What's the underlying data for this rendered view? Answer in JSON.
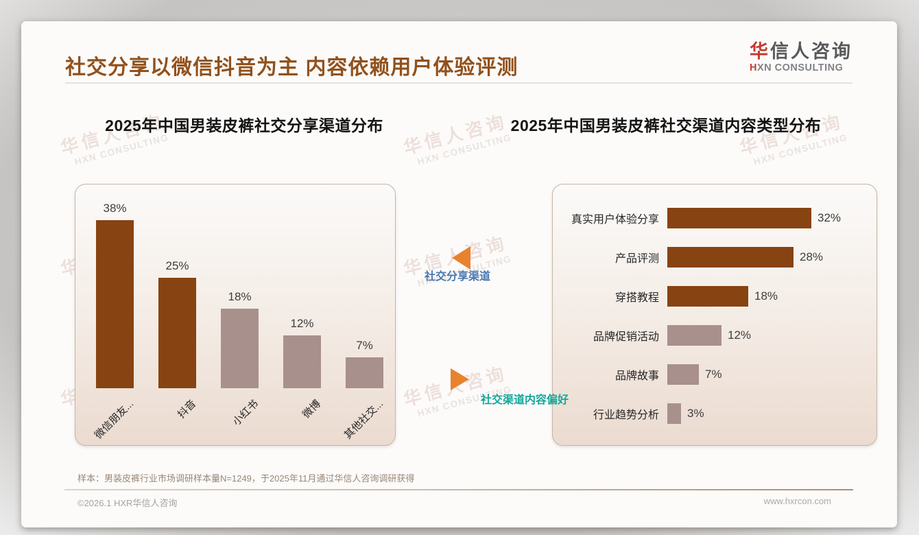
{
  "header": {
    "title": "社交分享以微信抖音为主 内容依赖用户体验评测",
    "logo_cn_accent": "华",
    "logo_cn_rest": "信人咨询",
    "logo_en_accent": "H",
    "logo_en_rest": "XN CONSULTING"
  },
  "connector": {
    "top_label": "社交分享渠道",
    "bottom_label": "社交渠道内容偏好"
  },
  "footnote": {
    "sample_note": "样本：男装皮裤行业市场调研样本量N=1249，于2025年11月通过华信人咨询调研获得"
  },
  "footer": {
    "copyright": "©2026.1 HXR华信人咨询",
    "website": "www.hxrcon.com"
  },
  "watermark": {
    "line1": "华信人咨询",
    "line2": "HXN CONSULTING"
  },
  "colors": {
    "title_brown": "#91511C",
    "primary_brown": "#874312",
    "secondary_mauve": "#A8908C",
    "accent_orange": "#E8822D",
    "label_blue": "#4A78B0",
    "label_teal": "#17A79A",
    "panel_border": "#C8B5A5"
  },
  "chart_data": [
    {
      "type": "bar",
      "orientation": "vertical",
      "title": "2025年中国男装皮裤社交分享渠道分布",
      "categories": [
        "微信朋友...",
        "抖音",
        "小红书",
        "微博",
        "其他社交..."
      ],
      "values": [
        38,
        25,
        18,
        12,
        7
      ],
      "data_labels": [
        "38%",
        "25%",
        "18%",
        "12%",
        "7%"
      ],
      "bar_colors": [
        "#874312",
        "#874312",
        "#A8908C",
        "#A8908C",
        "#A8908C"
      ],
      "unit": "%",
      "ylim": [
        0,
        46
      ],
      "grid": false,
      "legend": "none"
    },
    {
      "type": "bar",
      "orientation": "horizontal",
      "title": "2025年中国男装皮裤社交渠道内容类型分布",
      "categories": [
        "真实用户体验分享",
        "产品评测",
        "穿搭教程",
        "品牌促销活动",
        "品牌故事",
        "行业趋势分析"
      ],
      "values": [
        32,
        28,
        18,
        12,
        7,
        3
      ],
      "data_labels": [
        "32%",
        "28%",
        "18%",
        "12%",
        "7%",
        "3%"
      ],
      "bar_colors": [
        "#874312",
        "#874312",
        "#874312",
        "#A8908C",
        "#A8908C",
        "#A8908C"
      ],
      "unit": "%",
      "xlim": [
        0,
        36
      ],
      "grid": false,
      "legend": "none"
    }
  ]
}
